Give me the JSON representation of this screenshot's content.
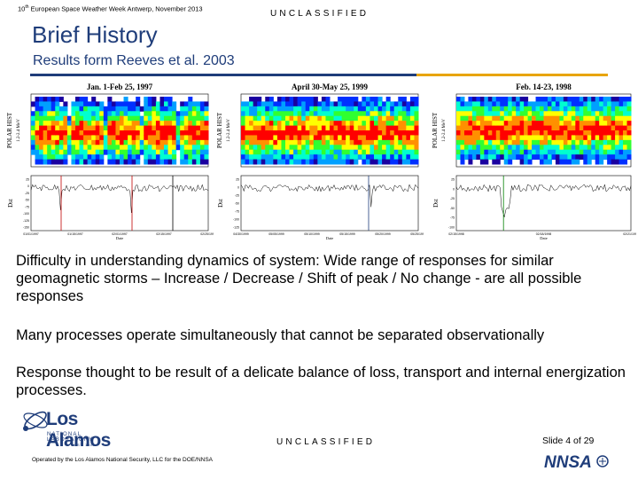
{
  "header": {
    "conference_num": "10",
    "conference_sup": "th",
    "conference_rest": " European Space Weather Week Antwerp, November 2013",
    "classification": "UNCLASSIFIED"
  },
  "title": "Brief History",
  "subtitle": "Results form Reeves et al. 2003",
  "figures": [
    {
      "title": "Jan. 1-Feb 25, 1997",
      "ylabel_top": "POLAR HIST",
      "ylabel_top2": "1.2-2.4 MeV",
      "ylabel_bottom": "Dst",
      "xlabel": "Date",
      "ticks": [
        "01/01/1997",
        "01/15/1997",
        "02/01/1997",
        "02/15/1997",
        "02/25/1997"
      ],
      "dst_yticks": [
        "25",
        "0",
        "-25",
        "-50",
        "-75",
        "-100",
        "-125",
        "-150"
      ]
    },
    {
      "title": "April 30-May 25, 1999",
      "ylabel_top": "POLAR HIST",
      "ylabel_top2": "1.2-2.4 MeV",
      "ylabel_bottom": "Dst",
      "xlabel": "Date",
      "ticks": [
        "04/30/1999",
        "05/05/1999",
        "05/10/1999",
        "05/15/1999",
        "05/20/1999",
        "05/25/1999"
      ],
      "dst_yticks": [
        "25",
        "0",
        "-25",
        "-50",
        "-75",
        "-100",
        "-125"
      ]
    },
    {
      "title": "Feb. 14-23, 1998",
      "ylabel_top": "POLAR HIST",
      "ylabel_top2": "1.2-2.4 MeV",
      "ylabel_bottom": "Dst",
      "xlabel": "Date",
      "ticks": [
        "02/15/1998",
        "02/18/1998",
        "02/21/1998"
      ],
      "dst_yticks": [
        "25",
        "0",
        "-25",
        "-50",
        "-75",
        "-100"
      ]
    }
  ],
  "paragraphs": [
    "Difficulty in understanding dynamics of system: Wide range of responses for similar geomagnetic storms – Increase / Decrease / Shift of peak / No change - are all possible responses",
    "Many processes operate simultaneously that cannot be separated observationally",
    "Response thought to be result of a delicate balance of loss, transport and internal energization processes."
  ],
  "logo": {
    "name": "Los Alamos",
    "sub": "NATIONAL LABORATORY",
    "est": "EST. 1943"
  },
  "footer": {
    "classification": "UNCLASSIFIED",
    "slide_label": "Slide 4 of 29",
    "operated_by": "Operated by the Los Alamos National Security, LLC for the DOE/NNSA",
    "nnsa": "NNSA"
  },
  "colors": {
    "title_blue": "#1f3d7a",
    "rule_gold": "#e8a400"
  }
}
